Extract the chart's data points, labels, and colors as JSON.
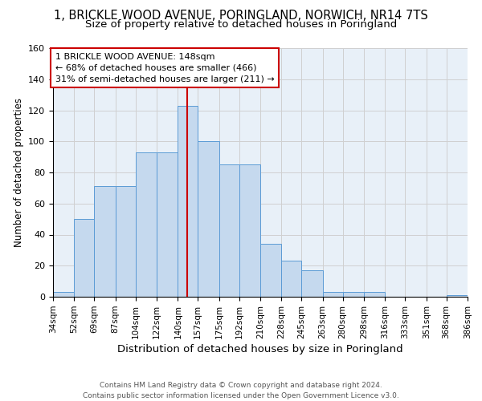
{
  "title": "1, BRICKLE WOOD AVENUE, PORINGLAND, NORWICH, NR14 7TS",
  "subtitle": "Size of property relative to detached houses in Poringland",
  "xlabel": "Distribution of detached houses by size in Poringland",
  "ylabel": "Number of detached properties",
  "footnote": "Contains HM Land Registry data © Crown copyright and database right 2024.\nContains public sector information licensed under the Open Government Licence v3.0.",
  "bar_edges": [
    34,
    52,
    69,
    87,
    104,
    122,
    140,
    157,
    175,
    192,
    210,
    228,
    245,
    263,
    280,
    298,
    316,
    333,
    351,
    368,
    386
  ],
  "bar_heights": [
    3,
    50,
    71,
    71,
    93,
    93,
    123,
    100,
    85,
    85,
    34,
    23,
    17,
    3,
    3,
    3,
    0,
    0,
    0,
    1
  ],
  "bar_facecolor": "#c5d9ee",
  "bar_edgecolor": "#5b9bd5",
  "red_line_x": 148,
  "annotation_text": "1 BRICKLE WOOD AVENUE: 148sqm\n← 68% of detached houses are smaller (466)\n31% of semi-detached houses are larger (211) →",
  "ylim": [
    0,
    160
  ],
  "yticks": [
    0,
    20,
    40,
    60,
    80,
    100,
    120,
    140,
    160
  ],
  "grid_color": "#d0d0d0",
  "bg_color": "#e8f0f8",
  "fig_bg": "#ffffff",
  "title_fontsize": 10.5,
  "subtitle_fontsize": 9.5,
  "ylabel_fontsize": 8.5,
  "xlabel_fontsize": 9.5,
  "tick_fontsize": 7.5,
  "annot_fontsize": 8,
  "footnote_fontsize": 6.5
}
